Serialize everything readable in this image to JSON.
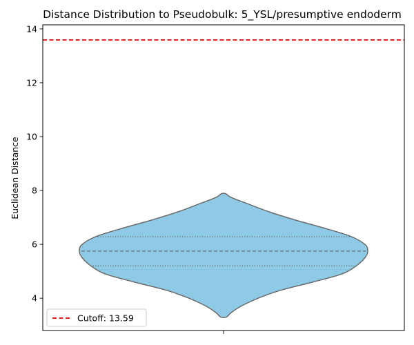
{
  "chart_data": {
    "type": "violin",
    "title": "Distance Distribution to Pseudobulk: 5_YSL/presumptive endoderm",
    "xlabel": "",
    "ylabel": "Euclidean Distance",
    "ylim": [
      2.8,
      14.15
    ],
    "yticks": [
      4,
      6,
      8,
      10,
      12,
      14
    ],
    "grid": false,
    "violin": {
      "color": "#8ecae6",
      "edge_color": "#6b6b6b",
      "profile": [
        {
          "y": 3.3,
          "w": 0.02
        },
        {
          "y": 3.45,
          "w": 0.05
        },
        {
          "y": 3.7,
          "w": 0.12
        },
        {
          "y": 4.0,
          "w": 0.24
        },
        {
          "y": 4.3,
          "w": 0.4
        },
        {
          "y": 4.6,
          "w": 0.62
        },
        {
          "y": 4.9,
          "w": 0.82
        },
        {
          "y": 5.2,
          "w": 0.92
        },
        {
          "y": 5.5,
          "w": 0.98
        },
        {
          "y": 5.75,
          "w": 1.0
        },
        {
          "y": 6.0,
          "w": 0.98
        },
        {
          "y": 6.3,
          "w": 0.88
        },
        {
          "y": 6.6,
          "w": 0.7
        },
        {
          "y": 6.9,
          "w": 0.5
        },
        {
          "y": 7.2,
          "w": 0.32
        },
        {
          "y": 7.5,
          "w": 0.17
        },
        {
          "y": 7.75,
          "w": 0.05
        },
        {
          "y": 7.88,
          "w": 0.015
        }
      ],
      "quartiles": {
        "q1": 5.2,
        "median": 5.75,
        "q3": 6.28
      }
    },
    "cutoff": {
      "value": 13.59,
      "color": "#dd0000"
    },
    "legend": {
      "label": "Cutoff: 13.59",
      "position": "lower-left"
    }
  }
}
